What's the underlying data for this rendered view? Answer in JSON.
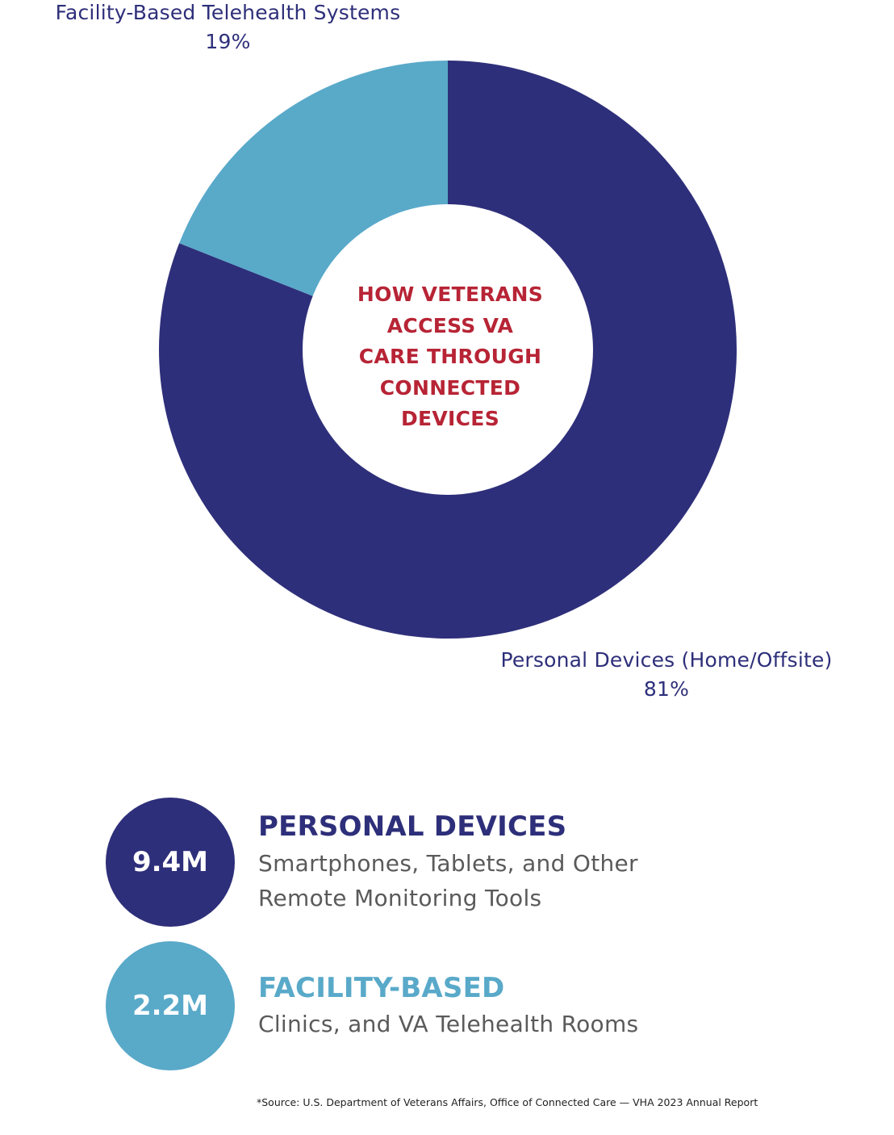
{
  "chart_data": {
    "type": "pie",
    "variant": "donut",
    "title": "HOW VETERANS ACCESS VA CARE THROUGH CONNECTED DEVICES",
    "categories": [
      "Personal Devices (Home/Offsite)",
      "Facility-Based Telehealth Systems"
    ],
    "values": [
      81,
      19
    ],
    "unit": "%",
    "colors": [
      "#2e2f7a",
      "#59a9c9"
    ],
    "start_angle": "12 o'clock",
    "direction": "clockwise",
    "labels": [
      {
        "name": "Personal Devices (Home/Offsite)",
        "percent": "81%",
        "position": "bottom-right"
      },
      {
        "name": "Facility-Based Telehealth Systems",
        "percent": "19%",
        "position": "top-left"
      }
    ]
  },
  "labels": {
    "facility_name": "Facility-Based Telehealth Systems",
    "facility_pct": "19%",
    "personal_name": "Personal Devices (Home/Offsite)",
    "personal_pct": "81%"
  },
  "center_title": [
    "HOW VETERANS",
    "ACCESS VA",
    "CARE THROUGH",
    "CONNECTED",
    "DEVICES"
  ],
  "stats": [
    {
      "value": "9.4M",
      "heading": "PERSONAL DEVICES",
      "description_lines": [
        "Smartphones, Tablets, and Other",
        "Remote Monitoring Tools"
      ],
      "color": "#2e2f7a"
    },
    {
      "value": "2.2M",
      "heading": "FACILITY-BASED",
      "description_lines": [
        "Clinics, and VA Telehealth Rooms"
      ],
      "color": "#59a9c9"
    }
  ],
  "colors": {
    "primary_navy": "#2e2f7a",
    "light_blue": "#59a9c9",
    "title_red": "#b72435",
    "body_gray": "#5a5a5a"
  },
  "source_note": "*Source: U.S. Department of Veterans Affairs, Office of Connected Care — VHA 2023 Annual Report"
}
